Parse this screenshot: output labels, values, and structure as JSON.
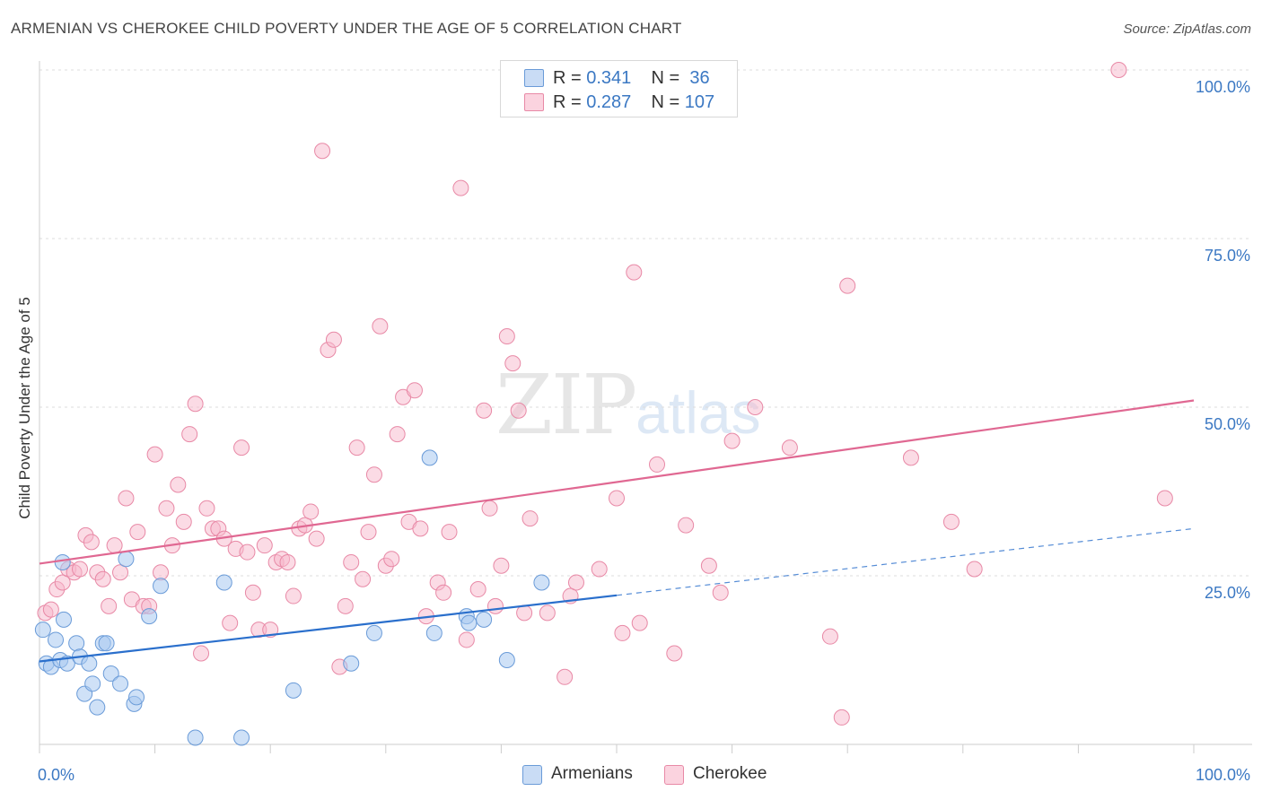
{
  "header": {
    "title": "ARMENIAN VS CHEROKEE CHILD POVERTY UNDER THE AGE OF 5 CORRELATION CHART",
    "source": "Source: ZipAtlas.com"
  },
  "watermark": {
    "zip": "ZIP",
    "atlas": "atlas"
  },
  "legend": {
    "rows": [
      {
        "r_label": "R =",
        "r_value": "0.341",
        "n_label": "N =",
        "n_value": "36",
        "color": "#a8c8f0"
      },
      {
        "r_label": "R =",
        "r_value": "0.287",
        "n_label": "N =",
        "n_value": "107",
        "color": "#f7b8cb"
      }
    ]
  },
  "bottom_legend": {
    "armenians": "Armenians",
    "cherokee": "Cherokee"
  },
  "chart_data": {
    "type": "scatter",
    "title": "ARMENIAN VS CHEROKEE CHILD POVERTY UNDER THE AGE OF 5 CORRELATION CHART",
    "xlabel": "",
    "ylabel": "Child Poverty Under the Age of 5",
    "xlim": [
      0,
      100
    ],
    "ylim": [
      0,
      100
    ],
    "x_tick_labels": [
      "0.0%",
      "100.0%"
    ],
    "y_ticks": [
      25,
      50,
      75,
      100
    ],
    "y_tick_labels": [
      "25.0%",
      "50.0%",
      "75.0%",
      "100.0%"
    ],
    "grid": true,
    "colors": {
      "armenians_fill": "#a8c8f0",
      "armenians_stroke": "#6a9bd8",
      "armenians_line": "#2a6fcc",
      "cherokee_fill": "#f7b8cb",
      "cherokee_stroke": "#e889a6",
      "cherokee_line": "#e06892",
      "axis_label": "#3b78c3"
    },
    "series": [
      {
        "name": "Armenians",
        "R": 0.341,
        "N": 36,
        "trend": {
          "x0": 0,
          "y0": 12.3,
          "x1": 50,
          "y1": 22.1,
          "dashed_to_x": 100,
          "dashed_to_y": 32.0
        },
        "points": [
          [
            0.3,
            17
          ],
          [
            0.6,
            12
          ],
          [
            1.0,
            11.5
          ],
          [
            1.4,
            15.5
          ],
          [
            1.8,
            12.5
          ],
          [
            2.1,
            18.5
          ],
          [
            2.4,
            12
          ],
          [
            3.2,
            15
          ],
          [
            3.5,
            13
          ],
          [
            3.9,
            7.5
          ],
          [
            4.3,
            12
          ],
          [
            4.6,
            9
          ],
          [
            5.0,
            5.5
          ],
          [
            5.5,
            15
          ],
          [
            5.8,
            15
          ],
          [
            6.2,
            10.5
          ],
          [
            7.0,
            9
          ],
          [
            8.2,
            6
          ],
          [
            8.4,
            7
          ],
          [
            9.5,
            19
          ],
          [
            10.5,
            23.5
          ],
          [
            13.5,
            1
          ],
          [
            16.0,
            24
          ],
          [
            17.5,
            1
          ],
          [
            22.0,
            8
          ],
          [
            27.0,
            12
          ],
          [
            29.0,
            16.5
          ],
          [
            33.8,
            42.5
          ],
          [
            34.2,
            16.5
          ],
          [
            37.0,
            19
          ],
          [
            37.2,
            18
          ],
          [
            38.5,
            18.5
          ],
          [
            40.5,
            12.5
          ],
          [
            43.5,
            24.0
          ],
          [
            2.0,
            27
          ],
          [
            7.5,
            27.5
          ]
        ]
      },
      {
        "name": "Cherokee",
        "R": 0.287,
        "N": 107,
        "trend": {
          "x0": 0,
          "y0": 26.8,
          "x1": 100,
          "y1": 51.0
        },
        "points": [
          [
            0.5,
            19.5
          ],
          [
            1.0,
            20
          ],
          [
            1.5,
            23
          ],
          [
            2.0,
            24
          ],
          [
            2.5,
            26
          ],
          [
            3.0,
            25.5
          ],
          [
            3.5,
            26
          ],
          [
            4.0,
            31
          ],
          [
            4.5,
            30
          ],
          [
            5.0,
            25.5
          ],
          [
            5.5,
            24.5
          ],
          [
            6.0,
            20.5
          ],
          [
            6.5,
            29.5
          ],
          [
            7.0,
            25.5
          ],
          [
            7.5,
            36.5
          ],
          [
            8.0,
            21.5
          ],
          [
            8.5,
            31.5
          ],
          [
            9.0,
            20.5
          ],
          [
            9.5,
            20.5
          ],
          [
            10.0,
            43
          ],
          [
            10.5,
            25.5
          ],
          [
            11.0,
            35
          ],
          [
            11.5,
            29.5
          ],
          [
            12.0,
            38.5
          ],
          [
            12.5,
            33
          ],
          [
            13.0,
            46
          ],
          [
            13.5,
            50.5
          ],
          [
            14.0,
            13.5
          ],
          [
            14.5,
            35
          ],
          [
            15.0,
            32
          ],
          [
            15.5,
            32
          ],
          [
            16.0,
            30.5
          ],
          [
            16.5,
            18
          ],
          [
            17.0,
            29
          ],
          [
            17.5,
            44
          ],
          [
            18.0,
            28.5
          ],
          [
            18.5,
            22.5
          ],
          [
            19.0,
            17
          ],
          [
            19.5,
            29.5
          ],
          [
            20.0,
            17
          ],
          [
            20.5,
            27
          ],
          [
            21.0,
            27.5
          ],
          [
            21.5,
            27
          ],
          [
            22.0,
            22
          ],
          [
            22.5,
            32
          ],
          [
            23.0,
            32.5
          ],
          [
            23.5,
            34.5
          ],
          [
            24.0,
            30.5
          ],
          [
            24.5,
            88
          ],
          [
            25.0,
            58.5
          ],
          [
            25.5,
            60
          ],
          [
            26.0,
            11.5
          ],
          [
            26.5,
            20.5
          ],
          [
            27.0,
            27
          ],
          [
            27.5,
            44
          ],
          [
            28.0,
            24.5
          ],
          [
            28.5,
            31.5
          ],
          [
            29.0,
            40
          ],
          [
            29.5,
            62
          ],
          [
            30.0,
            26.5
          ],
          [
            30.5,
            27.5
          ],
          [
            31.0,
            46
          ],
          [
            31.5,
            51.5
          ],
          [
            32.0,
            33
          ],
          [
            32.5,
            52.5
          ],
          [
            33.0,
            32
          ],
          [
            33.5,
            19
          ],
          [
            34.5,
            24
          ],
          [
            35.0,
            22.5
          ],
          [
            35.5,
            31.5
          ],
          [
            36.5,
            82.5
          ],
          [
            37.0,
            15.5
          ],
          [
            38.0,
            23
          ],
          [
            38.5,
            49.5
          ],
          [
            39.0,
            35
          ],
          [
            39.5,
            20.5
          ],
          [
            40.0,
            26.5
          ],
          [
            40.5,
            60.5
          ],
          [
            41.0,
            56.5
          ],
          [
            41.5,
            49.5
          ],
          [
            42.0,
            19.5
          ],
          [
            42.5,
            33.5
          ],
          [
            44.0,
            19.5
          ],
          [
            45.5,
            10
          ],
          [
            46.0,
            22
          ],
          [
            46.5,
            24
          ],
          [
            48.5,
            26
          ],
          [
            50.0,
            36.5
          ],
          [
            50.5,
            16.5
          ],
          [
            51.5,
            70
          ],
          [
            52.0,
            18
          ],
          [
            53.5,
            41.5
          ],
          [
            55.0,
            13.5
          ],
          [
            56.0,
            32.5
          ],
          [
            58.0,
            26.5
          ],
          [
            59.0,
            22.5
          ],
          [
            60.0,
            45
          ],
          [
            62.0,
            50
          ],
          [
            65.0,
            44
          ],
          [
            68.5,
            16
          ],
          [
            69.5,
            4
          ],
          [
            70.0,
            68
          ],
          [
            75.5,
            42.5
          ],
          [
            79.0,
            33
          ],
          [
            81.0,
            26
          ],
          [
            93.5,
            100
          ],
          [
            97.5,
            36.5
          ]
        ]
      }
    ]
  }
}
